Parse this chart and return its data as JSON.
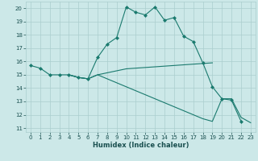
{
  "xlabel": "Humidex (Indice chaleur)",
  "bg_color": "#cce8e8",
  "line_color": "#1a7a6e",
  "grid_color": "#aacece",
  "xlim": [
    -0.5,
    23.5
  ],
  "ylim": [
    10.7,
    20.5
  ],
  "yticks": [
    11,
    12,
    13,
    14,
    15,
    16,
    17,
    18,
    19,
    20
  ],
  "xticks": [
    0,
    1,
    2,
    3,
    4,
    5,
    6,
    7,
    8,
    9,
    10,
    11,
    12,
    13,
    14,
    15,
    16,
    17,
    18,
    19,
    20,
    21,
    22,
    23
  ],
  "line1_x": [
    0,
    1,
    2,
    3,
    4,
    5,
    6,
    7,
    8,
    9,
    10,
    11,
    12,
    13,
    14,
    15,
    16,
    17,
    18,
    19,
    20,
    21,
    22
  ],
  "line1_y": [
    15.7,
    15.5,
    15.0,
    15.0,
    15.0,
    14.8,
    14.7,
    16.3,
    17.3,
    17.8,
    20.1,
    19.7,
    19.5,
    20.1,
    19.1,
    19.3,
    17.9,
    17.5,
    15.9,
    14.1,
    13.2,
    13.1,
    11.5
  ],
  "line2_x": [
    4,
    5,
    6,
    7,
    8,
    9,
    10,
    11,
    12,
    13,
    14,
    15,
    16,
    17,
    18,
    19
  ],
  "line2_y": [
    15.0,
    14.8,
    14.7,
    15.0,
    15.15,
    15.3,
    15.45,
    15.5,
    15.55,
    15.6,
    15.65,
    15.7,
    15.75,
    15.8,
    15.85,
    15.9
  ],
  "line3_x": [
    4,
    5,
    6,
    7,
    8,
    9,
    10,
    11,
    12,
    13,
    14,
    15,
    16,
    17,
    18,
    19,
    20,
    21,
    22,
    23
  ],
  "line3_y": [
    15.0,
    14.8,
    14.7,
    15.0,
    14.7,
    14.4,
    14.1,
    13.8,
    13.5,
    13.2,
    12.9,
    12.6,
    12.3,
    12.0,
    11.7,
    11.5,
    13.2,
    13.2,
    11.8,
    11.4
  ]
}
